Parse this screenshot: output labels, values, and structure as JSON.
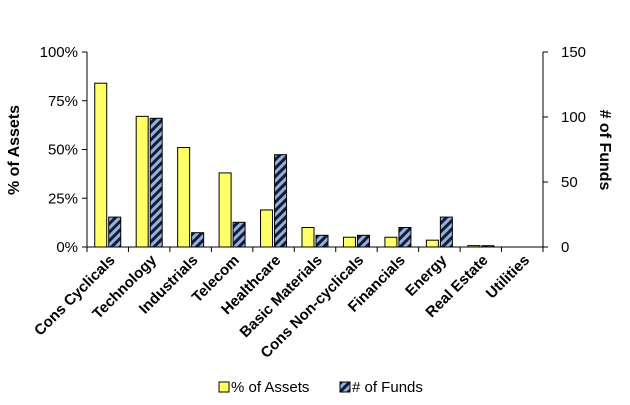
{
  "chart_data": {
    "type": "bar",
    "categories": [
      "Cons Cyclicals",
      "Technology",
      "Industrials",
      "Telecom",
      "Healthcare",
      "Basic Materials",
      "Cons Non-cyclicals",
      "Financials",
      "Energy",
      "Real Estate",
      "Utilities"
    ],
    "series": [
      {
        "name": "% of Assets",
        "axis": "left",
        "color": "#FFFF66",
        "values": [
          84,
          67,
          51,
          38,
          19,
          10,
          5,
          5,
          3.5,
          0.7,
          0
        ]
      },
      {
        "name": "# of Funds",
        "axis": "right",
        "color": "#8DB3E2",
        "pattern": "dark diagonal hatch",
        "values": [
          23,
          99,
          11,
          19,
          71,
          9,
          9,
          15,
          23,
          1,
          0
        ]
      }
    ],
    "ylabel": "% of Assets",
    "y2label": "# of Funds",
    "ylim": [
      0,
      100
    ],
    "y2lim": [
      0,
      150
    ],
    "yticks": [
      "0%",
      "25%",
      "50%",
      "75%",
      "100%"
    ],
    "y2ticks": [
      "0",
      "50",
      "100",
      "150"
    ],
    "grid": false,
    "legend_position": "bottom"
  }
}
